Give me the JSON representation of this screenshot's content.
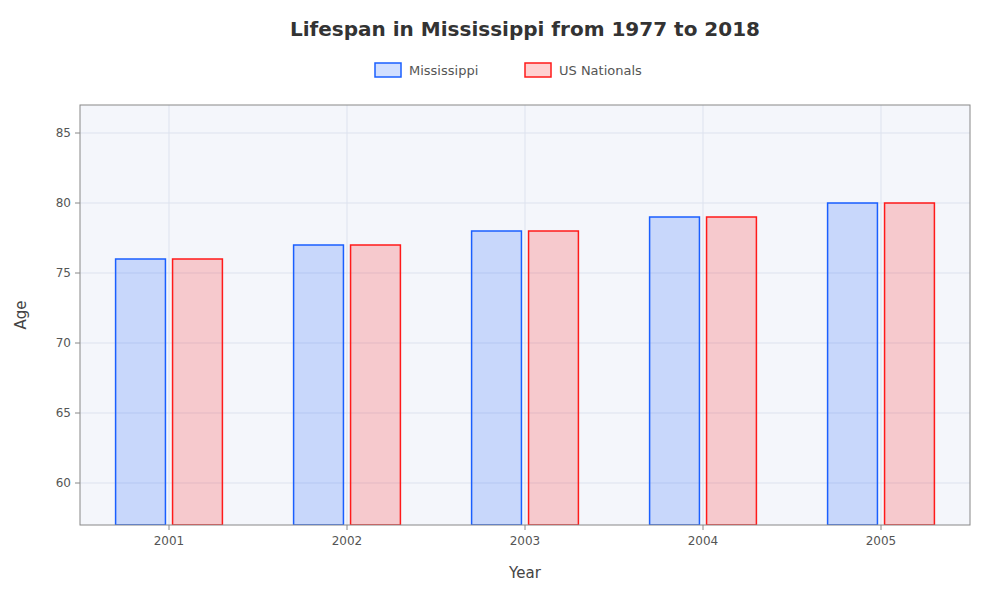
{
  "chart_data": {
    "type": "bar",
    "title": "Lifespan in Mississippi from 1977 to 2018",
    "xlabel": "Year",
    "ylabel": "Age",
    "categories": [
      "2001",
      "2002",
      "2003",
      "2004",
      "2005"
    ],
    "series": [
      {
        "name": "Mississippi",
        "color": "#1a5fff",
        "values": [
          76,
          77,
          78,
          79,
          80
        ]
      },
      {
        "name": "US Nationals",
        "color": "#ff1a1a",
        "values": [
          76,
          77,
          78,
          79,
          80
        ]
      }
    ],
    "ylim": [
      57,
      87
    ],
    "yticks": [
      60,
      65,
      70,
      75,
      80,
      85
    ],
    "grid": true,
    "legend": "top"
  }
}
